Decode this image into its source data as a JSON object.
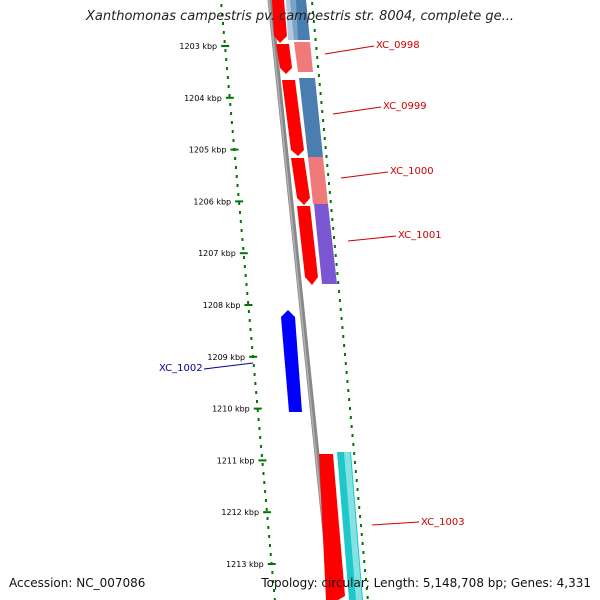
{
  "title": "Xanthomonas campestris pv. campestris str. 8004, complete ge...",
  "footer": {
    "accession": "Accession: NC_007086",
    "topology": "Topology: circular; Length: 5,148,708 bp; Genes: 4,331"
  },
  "ticks": [
    "1203 kbp",
    "1204 kbp",
    "1205 kbp",
    "1206 kbp",
    "1207 kbp",
    "1208 kbp",
    "1209 kbp",
    "1210 kbp",
    "1211 kbp",
    "1212 kbp",
    "1213 kbp"
  ],
  "gene_labels": [
    {
      "name": "XC_0998",
      "color": "#cc0000"
    },
    {
      "name": "XC_0999",
      "color": "#cc0000"
    },
    {
      "name": "XC_1000",
      "color": "#cc0000"
    },
    {
      "name": "XC_1001",
      "color": "#cc0000"
    },
    {
      "name": "XC_1002",
      "color": "#000099"
    },
    {
      "name": "XC_1003",
      "color": "#cc0000"
    }
  ],
  "colors": {
    "forward_cds": "#ff0000",
    "reverse_cds": "#0000ff",
    "backbone": "#888888",
    "ticks": "#007700"
  }
}
